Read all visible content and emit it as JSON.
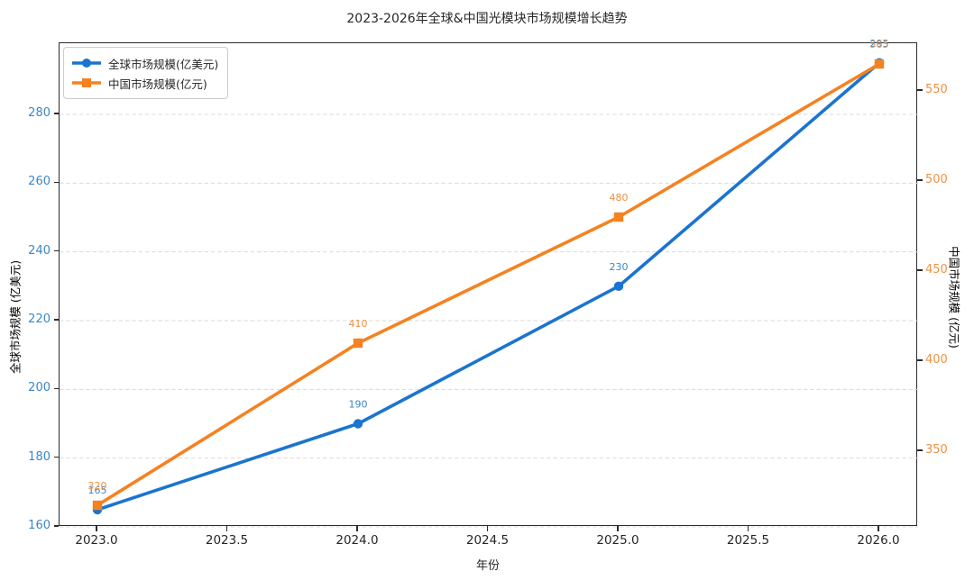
{
  "title": "2023-2026年全球&中国光模块市场规模增长趋势",
  "colors": {
    "blue": "#1b74cf",
    "blue_text": "#3a86c8",
    "orange": "#f58220",
    "orange_text": "#ee9142",
    "grid": "#d9d9d9",
    "spine": "#2b2b2b",
    "text": "#262626"
  },
  "chart_data": {
    "type": "line",
    "title": "2023-2026年全球&中国光模块市场规模增长趋势",
    "xlabel": "年份",
    "x": [
      2023,
      2024,
      2025,
      2026
    ],
    "x_tick_labels": [
      "2023.0",
      "2023.5",
      "2024.0",
      "2024.5",
      "2025.0",
      "2025.5",
      "2026.0"
    ],
    "grid": "horizontal-dashed",
    "legend_position": "upper-left",
    "left_axis": {
      "label": "全球市场规模 (亿美元)",
      "ticks": [
        160,
        180,
        200,
        220,
        240,
        260,
        280
      ],
      "range": [
        160,
        300
      ]
    },
    "right_axis": {
      "label": "中国市场规模 (亿元)",
      "ticks": [
        350,
        400,
        450,
        500,
        550
      ],
      "range": [
        308,
        580
      ]
    },
    "series": [
      {
        "name": "全球市场规模(亿美元)",
        "axis": "left",
        "marker": "circle",
        "color_key": "blue",
        "values": [
          165,
          190,
          230,
          295
        ]
      },
      {
        "name": "中国市场规模(亿元)",
        "axis": "right",
        "marker": "square",
        "color_key": "orange",
        "values": [
          320,
          410,
          480,
          565
        ]
      }
    ]
  }
}
